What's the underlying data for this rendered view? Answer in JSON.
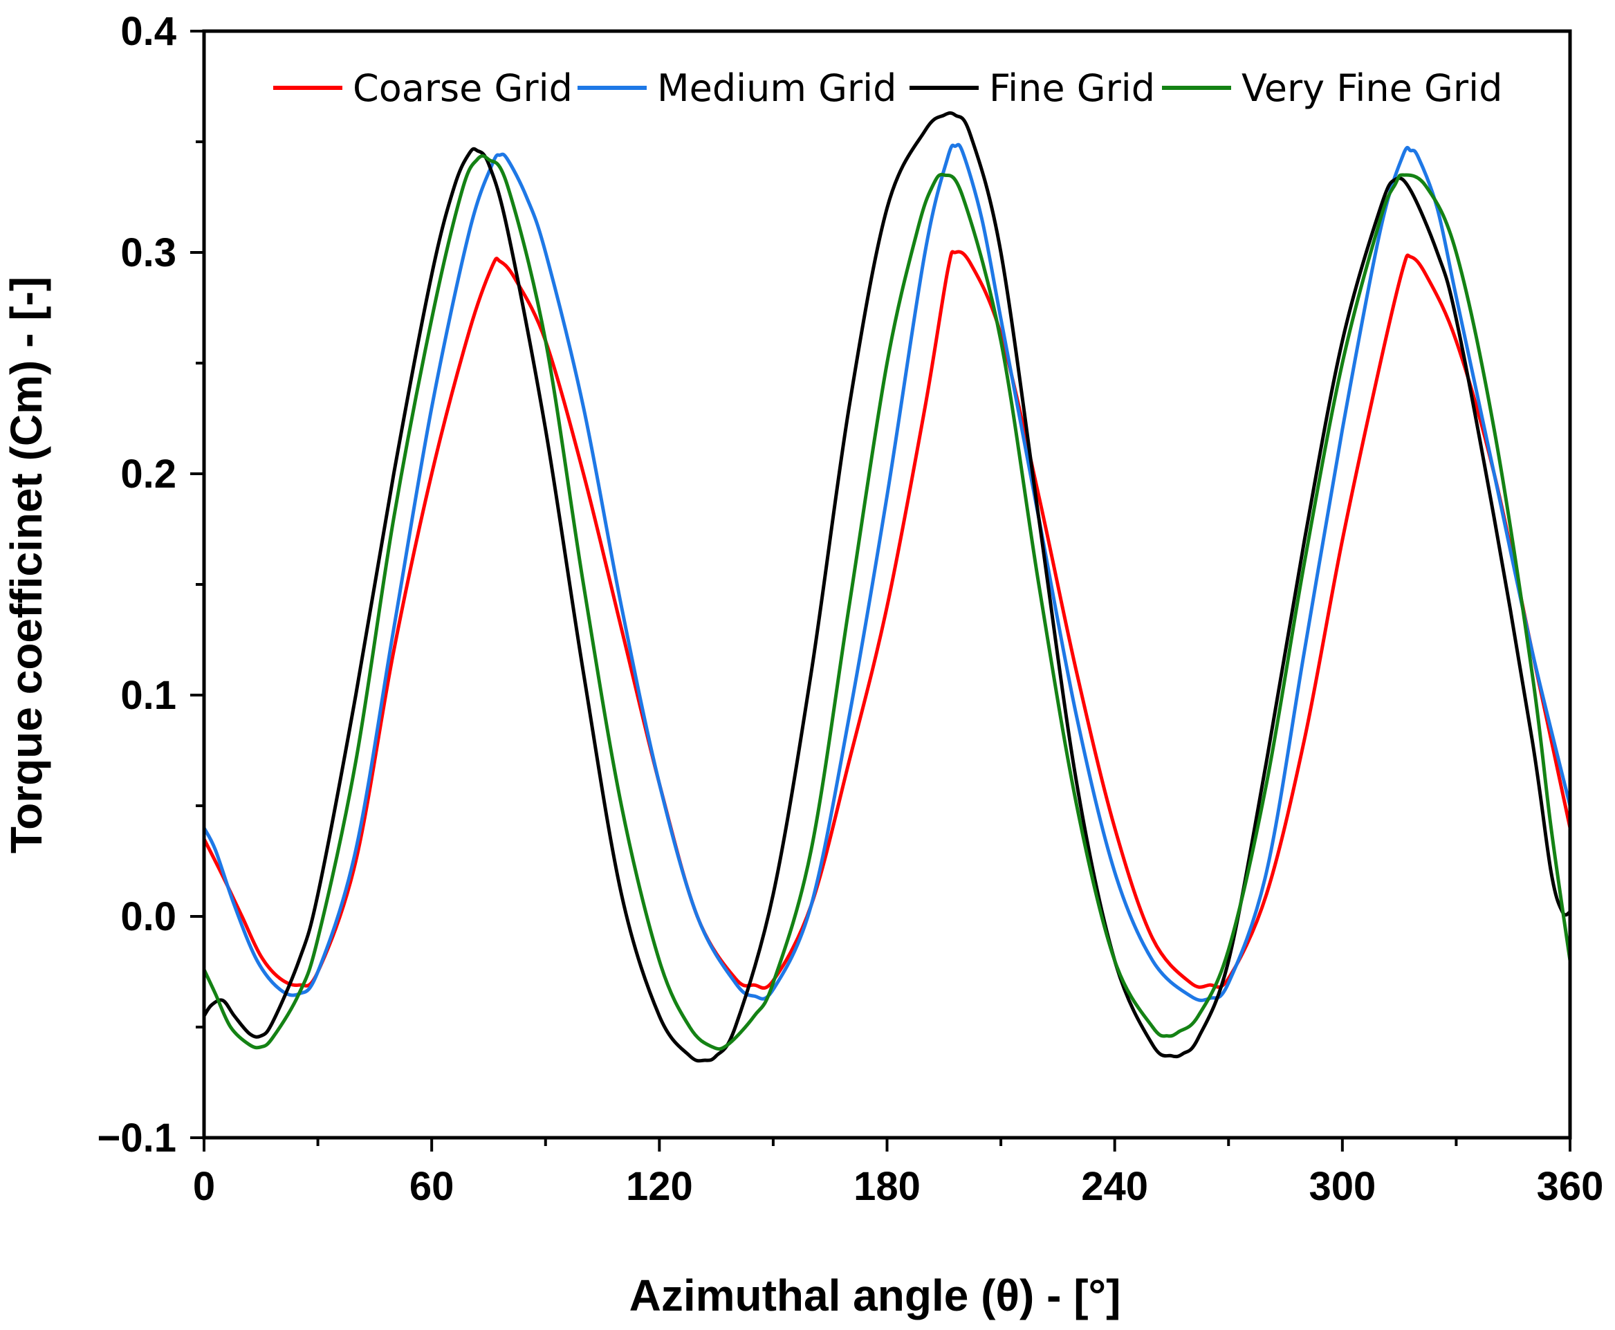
{
  "chart_data": {
    "type": "line",
    "title": "",
    "xlabel": "Azimuthal angle (θ) - [°]",
    "ylabel": "Torque coefficinet (Cm) - [-]",
    "xlim": [
      0,
      360
    ],
    "ylim": [
      -0.1,
      0.4
    ],
    "xticks": [
      0,
      60,
      120,
      180,
      240,
      300,
      360
    ],
    "xtick_labels": [
      "0",
      "60",
      "120",
      "180",
      "240",
      "300",
      "360"
    ],
    "yticks": [
      -0.1,
      0.0,
      0.1,
      0.2,
      0.3,
      0.4
    ],
    "ytick_labels": [
      "−0.1",
      "0.0",
      "0.1",
      "0.2",
      "0.3",
      "0.4"
    ],
    "grid": false,
    "legend_position": "top",
    "series": [
      {
        "name": "Coarse Grid",
        "color": "#ff0000",
        "x": [
          0,
          5,
          10,
          15,
          20,
          25,
          30,
          40,
          50,
          60,
          70,
          76,
          78,
          82,
          90,
          100,
          110,
          120,
          130,
          140,
          145,
          150,
          160,
          170,
          180,
          190,
          196,
          198,
          202,
          210,
          220,
          230,
          240,
          250,
          260,
          265,
          270,
          280,
          290,
          300,
          310,
          316,
          318,
          322,
          330,
          340,
          350,
          360
        ],
        "y": [
          0.035,
          0.018,
          0.0,
          -0.018,
          -0.028,
          -0.031,
          -0.025,
          0.025,
          0.12,
          0.2,
          0.265,
          0.294,
          0.296,
          0.288,
          0.26,
          0.2,
          0.13,
          0.06,
          0.0,
          -0.028,
          -0.031,
          -0.029,
          0.005,
          0.07,
          0.14,
          0.23,
          0.292,
          0.3,
          0.295,
          0.263,
          0.19,
          0.11,
          0.04,
          -0.01,
          -0.03,
          -0.031,
          -0.028,
          0.01,
          0.08,
          0.17,
          0.25,
          0.293,
          0.298,
          0.29,
          0.26,
          0.2,
          0.12,
          0.04
        ]
      },
      {
        "name": "Medium Grid",
        "color": "#1e78e6",
        "x": [
          0,
          3,
          8,
          14,
          20,
          25,
          30,
          40,
          50,
          60,
          70,
          76,
          78,
          80,
          85,
          90,
          100,
          110,
          120,
          130,
          140,
          145,
          150,
          160,
          170,
          180,
          190,
          196,
          198,
          200,
          205,
          210,
          220,
          230,
          240,
          250,
          260,
          265,
          270,
          280,
          290,
          300,
          310,
          316,
          318,
          320,
          325,
          330,
          340,
          350,
          360
        ],
        "y": [
          0.04,
          0.03,
          0.005,
          -0.02,
          -0.033,
          -0.035,
          -0.025,
          0.03,
          0.13,
          0.23,
          0.31,
          0.34,
          0.344,
          0.342,
          0.325,
          0.3,
          0.23,
          0.14,
          0.06,
          0.0,
          -0.03,
          -0.036,
          -0.033,
          0.005,
          0.09,
          0.19,
          0.3,
          0.343,
          0.348,
          0.345,
          0.315,
          0.27,
          0.18,
          0.09,
          0.02,
          -0.02,
          -0.036,
          -0.037,
          -0.03,
          0.02,
          0.12,
          0.22,
          0.31,
          0.344,
          0.346,
          0.343,
          0.32,
          0.28,
          0.2,
          0.12,
          0.05
        ]
      },
      {
        "name": "Fine Grid",
        "color": "#000000",
        "x": [
          0,
          2,
          5,
          8,
          12,
          15,
          18,
          25,
          30,
          40,
          50,
          60,
          66,
          70,
          72,
          75,
          80,
          90,
          100,
          110,
          120,
          128,
          132,
          135,
          140,
          150,
          160,
          170,
          180,
          190,
          195,
          198,
          202,
          210,
          220,
          230,
          240,
          250,
          255,
          258,
          262,
          270,
          280,
          290,
          300,
          310,
          314,
          318,
          325,
          330,
          340,
          350,
          355,
          358,
          360
        ],
        "y": [
          -0.045,
          -0.04,
          -0.038,
          -0.045,
          -0.053,
          -0.054,
          -0.048,
          -0.02,
          0.01,
          0.1,
          0.2,
          0.29,
          0.33,
          0.345,
          0.346,
          0.34,
          0.31,
          0.22,
          0.11,
          0.01,
          -0.045,
          -0.063,
          -0.065,
          -0.063,
          -0.05,
          0.01,
          0.11,
          0.23,
          0.32,
          0.355,
          0.362,
          0.362,
          0.353,
          0.3,
          0.18,
          0.06,
          -0.02,
          -0.058,
          -0.063,
          -0.062,
          -0.055,
          -0.02,
          0.07,
          0.17,
          0.26,
          0.32,
          0.333,
          0.328,
          0.3,
          0.27,
          0.18,
          0.08,
          0.02,
          0.002,
          0.002
        ]
      },
      {
        "name": "Very Fine Grid",
        "color": "#148214",
        "x": [
          0,
          3,
          7,
          12,
          15,
          18,
          25,
          30,
          40,
          50,
          60,
          68,
          72,
          75,
          80,
          90,
          100,
          110,
          120,
          128,
          134,
          138,
          145,
          150,
          160,
          170,
          180,
          188,
          192,
          195,
          200,
          210,
          220,
          230,
          240,
          250,
          254,
          257,
          262,
          270,
          280,
          290,
          300,
          310,
          314,
          316,
          322,
          330,
          340,
          350,
          355,
          360
        ],
        "y": [
          -0.024,
          -0.035,
          -0.05,
          -0.058,
          -0.059,
          -0.055,
          -0.035,
          -0.01,
          0.07,
          0.18,
          0.27,
          0.328,
          0.342,
          0.342,
          0.33,
          0.26,
          0.15,
          0.05,
          -0.02,
          -0.05,
          -0.059,
          -0.058,
          -0.045,
          -0.03,
          0.03,
          0.14,
          0.25,
          0.31,
          0.33,
          0.335,
          0.325,
          0.26,
          0.15,
          0.05,
          -0.02,
          -0.05,
          -0.054,
          -0.052,
          -0.045,
          -0.015,
          0.06,
          0.16,
          0.25,
          0.315,
          0.331,
          0.335,
          0.33,
          0.3,
          0.22,
          0.11,
          0.04,
          -0.02
        ]
      }
    ]
  }
}
